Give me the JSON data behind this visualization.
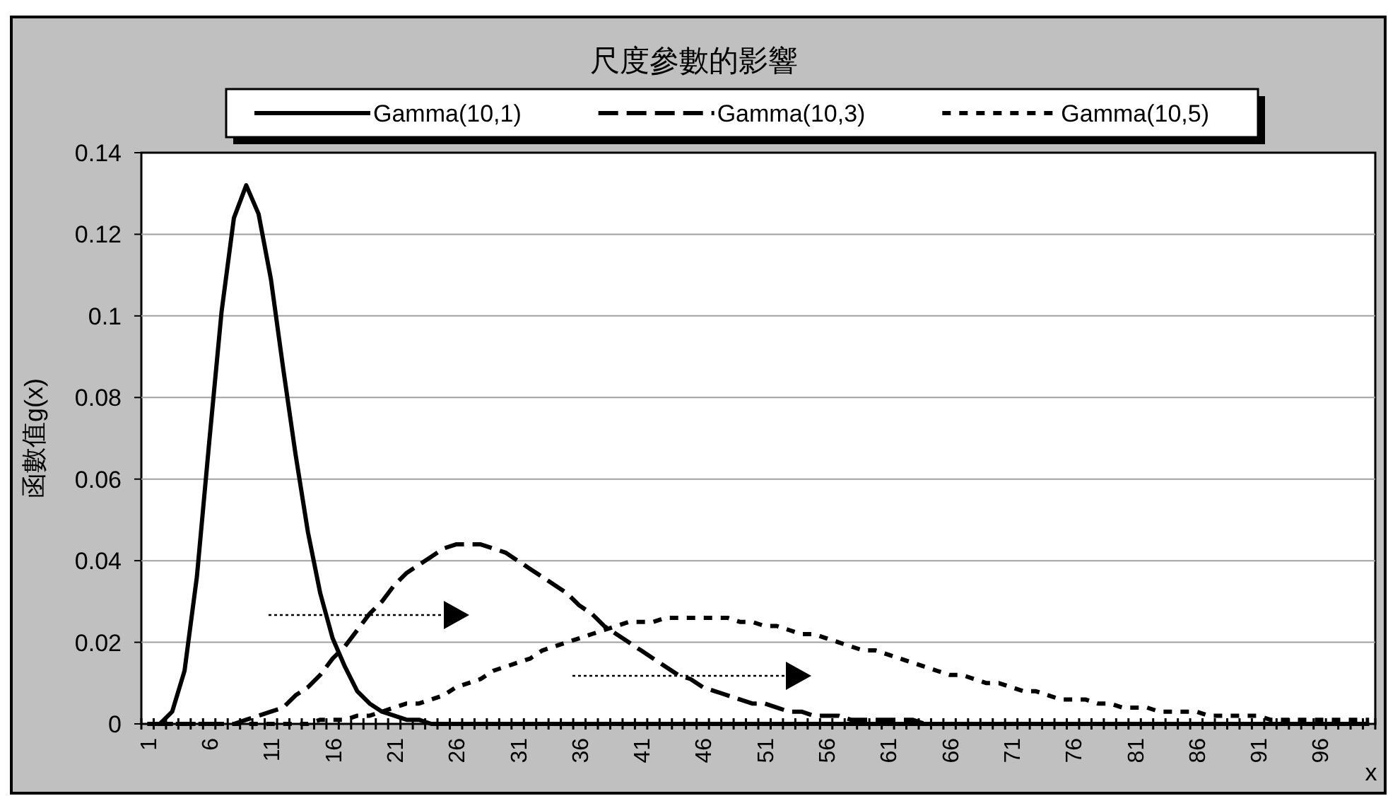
{
  "chart_data": {
    "type": "line",
    "title": "尺度參數的影響",
    "xlabel": "x",
    "ylabel": "函數值g(x)",
    "categories": [
      "1",
      null,
      null,
      null,
      null,
      "6",
      null,
      null,
      null,
      null,
      "11",
      null,
      null,
      null,
      null,
      "16",
      null,
      null,
      null,
      null,
      "21",
      null,
      null,
      null,
      null,
      "26",
      null,
      null,
      null,
      null,
      "31",
      null,
      null,
      null,
      null,
      "36",
      null,
      null,
      null,
      null,
      "41",
      null,
      null,
      null,
      null,
      "46",
      null,
      null,
      null,
      null,
      "51",
      null,
      null,
      null,
      null,
      "56",
      null,
      null,
      null,
      null,
      "61",
      null,
      null,
      null,
      null,
      "66",
      null,
      null,
      null,
      null,
      "71",
      null,
      null,
      null,
      null,
      "76",
      null,
      null,
      null,
      null,
      "81",
      null,
      null,
      null,
      null,
      "86",
      null,
      null,
      null,
      null,
      "91",
      null,
      null,
      null,
      null,
      "96",
      null,
      null,
      null,
      null
    ],
    "series": [
      {
        "name": "Gamma(10,1)",
        "color": "#000000",
        "line_style": "solid",
        "values": [
          0,
          0,
          0.003,
          0.013,
          0.036,
          0.069,
          0.101,
          0.124,
          0.132,
          0.125,
          0.109,
          0.087,
          0.066,
          0.047,
          0.032,
          0.021,
          0.014,
          0.008,
          0.005,
          0.003,
          0.002,
          0.001,
          0.001,
          0,
          0,
          0,
          0,
          0,
          0,
          0,
          0,
          0,
          0,
          0,
          0,
          0,
          0,
          0,
          0,
          0,
          0,
          0,
          0,
          0,
          0,
          0,
          0,
          0,
          0,
          0,
          0,
          0,
          0,
          0,
          0,
          0,
          0,
          0,
          0,
          0,
          0,
          0,
          0,
          0,
          0,
          0,
          0,
          0,
          0,
          0,
          0,
          0,
          0,
          0,
          0,
          0,
          0,
          0,
          0,
          0,
          0,
          0,
          0,
          0,
          0,
          0,
          0,
          0,
          0,
          0,
          0,
          0,
          0,
          0,
          0,
          0,
          0,
          0,
          0,
          0
        ]
      },
      {
        "name": "Gamma(10,3)",
        "color": "#000000",
        "line_style": "dashed",
        "values": [
          0,
          0,
          0,
          0,
          0,
          0,
          0,
          0,
          0.001,
          0.002,
          0.003,
          0.004,
          0.007,
          0.009,
          0.012,
          0.016,
          0.019,
          0.023,
          0.027,
          0.03,
          0.034,
          0.037,
          0.039,
          0.041,
          0.043,
          0.044,
          0.044,
          0.044,
          0.043,
          0.042,
          0.04,
          0.038,
          0.036,
          0.034,
          0.032,
          0.029,
          0.027,
          0.024,
          0.022,
          0.02,
          0.018,
          0.016,
          0.014,
          0.012,
          0.011,
          0.009,
          0.008,
          0.007,
          0.006,
          0.005,
          0.005,
          0.004,
          0.003,
          0.003,
          0.002,
          0.002,
          0.002,
          0.001,
          0.001,
          0.001,
          0.001,
          0.001,
          0.001,
          0,
          0,
          0,
          0,
          0,
          0,
          0,
          0,
          0,
          0,
          0,
          0,
          0,
          0,
          0,
          0,
          0,
          0,
          0,
          0,
          0,
          0,
          0,
          0,
          0,
          0,
          0,
          0,
          0,
          0,
          0,
          0,
          0,
          0,
          0,
          0,
          0
        ]
      },
      {
        "name": "Gamma(10,5)",
        "color": "#000000",
        "line_style": "dotted",
        "values": [
          0,
          0,
          0,
          0,
          0,
          0,
          0,
          0,
          0,
          0,
          0,
          0,
          0,
          0,
          0.001,
          0.001,
          0.001,
          0.002,
          0.002,
          0.003,
          0.004,
          0.005,
          0.005,
          0.006,
          0.007,
          0.009,
          0.01,
          0.011,
          0.013,
          0.014,
          0.015,
          0.016,
          0.018,
          0.019,
          0.02,
          0.021,
          0.022,
          0.023,
          0.024,
          0.025,
          0.025,
          0.025,
          0.026,
          0.026,
          0.026,
          0.026,
          0.026,
          0.026,
          0.025,
          0.025,
          0.024,
          0.024,
          0.023,
          0.022,
          0.022,
          0.021,
          0.02,
          0.019,
          0.018,
          0.018,
          0.017,
          0.016,
          0.015,
          0.014,
          0.013,
          0.012,
          0.012,
          0.011,
          0.01,
          0.01,
          0.009,
          0.008,
          0.008,
          0.007,
          0.006,
          0.006,
          0.006,
          0.005,
          0.005,
          0.004,
          0.004,
          0.004,
          0.003,
          0.003,
          0.003,
          0.003,
          0.002,
          0.002,
          0.002,
          0.002,
          0.002,
          0.001,
          0.001,
          0.001,
          0.001,
          0.001,
          0.001,
          0.001,
          0.001,
          0.001
        ]
      }
    ],
    "ylim": [
      0,
      0.14
    ],
    "yticks": [
      0,
      0.02,
      0.04,
      0.06,
      0.08,
      0.1,
      0.12,
      0.14
    ],
    "grid": "y",
    "legend": "top"
  }
}
